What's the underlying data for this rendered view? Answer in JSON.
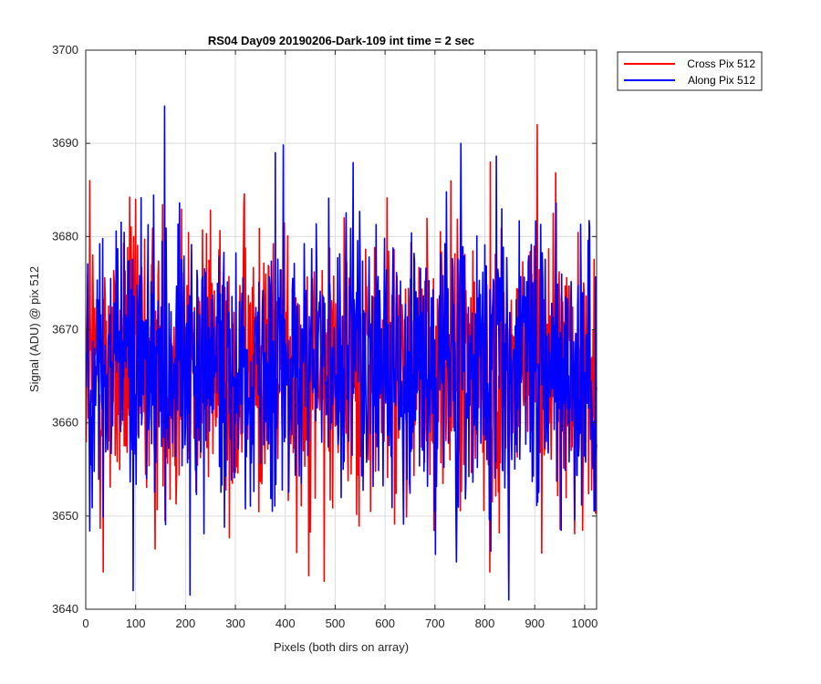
{
  "colors": {
    "cross": "#ff0000",
    "along": "#0000ff",
    "grid": "#dcdcdc",
    "axis": "#262626"
  },
  "chart_data": {
    "type": "line",
    "title": "RS04 Day09 20190206-Dark-109 int time = 2 sec",
    "xlabel": "Pixels (both dirs on array)",
    "ylabel": "Signal (ADU) @ pix 512",
    "xlim": [
      0,
      1024
    ],
    "ylim": [
      3640,
      3700
    ],
    "xticks": [
      0,
      100,
      200,
      300,
      400,
      500,
      600,
      700,
      800,
      900,
      1000
    ],
    "yticks": [
      3640,
      3650,
      3660,
      3670,
      3680,
      3690,
      3700
    ],
    "grid": true,
    "legend_position": "outside-top-right",
    "series_style": "dense noisy line, approximately 1024 samples per series, mean about 3666 ADU, range roughly 3642 to 3694",
    "series": [
      {
        "name": "Cross Pix 512",
        "color": "#ff0000",
        "highlights": [
          {
            "x": 8,
            "y": 3686
          },
          {
            "x": 35,
            "y": 3644
          },
          {
            "x": 100,
            "y": 3684
          },
          {
            "x": 478,
            "y": 3643
          },
          {
            "x": 810,
            "y": 3644
          },
          {
            "x": 905,
            "y": 3692
          },
          {
            "x": 1020,
            "y": 3653
          }
        ]
      },
      {
        "name": "Along Pix 512",
        "color": "#0000ff",
        "highlights": [
          {
            "x": 95,
            "y": 3642
          },
          {
            "x": 158,
            "y": 3694
          },
          {
            "x": 380,
            "y": 3689
          },
          {
            "x": 752,
            "y": 3690
          },
          {
            "x": 848,
            "y": 3640
          },
          {
            "x": 1010,
            "y": 3681
          }
        ]
      }
    ]
  }
}
